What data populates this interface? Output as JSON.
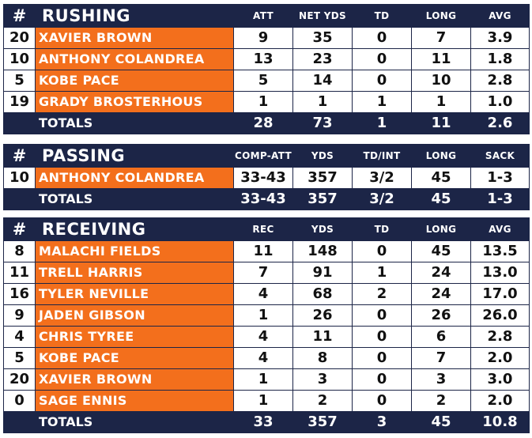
{
  "rushing": {
    "hash": "#",
    "title": "RUSHING",
    "columns": [
      "ATT",
      "NET YDS",
      "TD",
      "LONG",
      "AVG"
    ],
    "rows": [
      {
        "num": "20",
        "name": "XAVIER BROWN",
        "vals": [
          "9",
          "35",
          "0",
          "7",
          "3.9"
        ]
      },
      {
        "num": "10",
        "name": "ANTHONY COLANDREA",
        "vals": [
          "13",
          "23",
          "0",
          "11",
          "1.8"
        ]
      },
      {
        "num": "5",
        "name": "KOBE PACE",
        "vals": [
          "5",
          "14",
          "0",
          "10",
          "2.8"
        ]
      },
      {
        "num": "19",
        "name": "GRADY BROSTERHOUS",
        "vals": [
          "1",
          "1",
          "1",
          "1",
          "1.0"
        ]
      }
    ],
    "totals": {
      "label": "TOTALS",
      "vals": [
        "28",
        "73",
        "1",
        "11",
        "2.6"
      ]
    }
  },
  "passing": {
    "hash": "#",
    "title": "PASSING",
    "columns": [
      "COMP-ATT",
      "YDS",
      "TD/INT",
      "LONG",
      "SACK"
    ],
    "rows": [
      {
        "num": "10",
        "name": "ANTHONY COLANDREA",
        "vals": [
          "33-43",
          "357",
          "3/2",
          "45",
          "1-3"
        ]
      }
    ],
    "totals": {
      "label": "TOTALS",
      "vals": [
        "33-43",
        "357",
        "3/2",
        "45",
        "1-3"
      ]
    }
  },
  "receiving": {
    "hash": "#",
    "title": "RECEIVING",
    "columns": [
      "REC",
      "YDS",
      "TD",
      "LONG",
      "AVG"
    ],
    "rows": [
      {
        "num": "8",
        "name": "MALACHI FIELDS",
        "vals": [
          "11",
          "148",
          "0",
          "45",
          "13.5"
        ]
      },
      {
        "num": "11",
        "name": "TRELL HARRIS",
        "vals": [
          "7",
          "91",
          "1",
          "24",
          "13.0"
        ]
      },
      {
        "num": "16",
        "name": "TYLER NEVILLE",
        "vals": [
          "4",
          "68",
          "2",
          "24",
          "17.0"
        ]
      },
      {
        "num": "9",
        "name": "JADEN GIBSON",
        "vals": [
          "1",
          "26",
          "0",
          "26",
          "26.0"
        ]
      },
      {
        "num": "4",
        "name": "CHRIS TYREE",
        "vals": [
          "4",
          "11",
          "0",
          "6",
          "2.8"
        ]
      },
      {
        "num": "5",
        "name": "KOBE PACE",
        "vals": [
          "4",
          "8",
          "0",
          "7",
          "2.0"
        ]
      },
      {
        "num": "20",
        "name": "XAVIER BROWN",
        "vals": [
          "1",
          "3",
          "0",
          "3",
          "3.0"
        ]
      },
      {
        "num": "0",
        "name": "SAGE ENNIS",
        "vals": [
          "1",
          "2",
          "0",
          "2",
          "2.0"
        ]
      }
    ],
    "totals": {
      "label": "TOTALS",
      "vals": [
        "33",
        "357",
        "3",
        "45",
        "10.8"
      ]
    }
  },
  "colors": {
    "navy": "#1c2547",
    "orange": "#f36f1c"
  }
}
